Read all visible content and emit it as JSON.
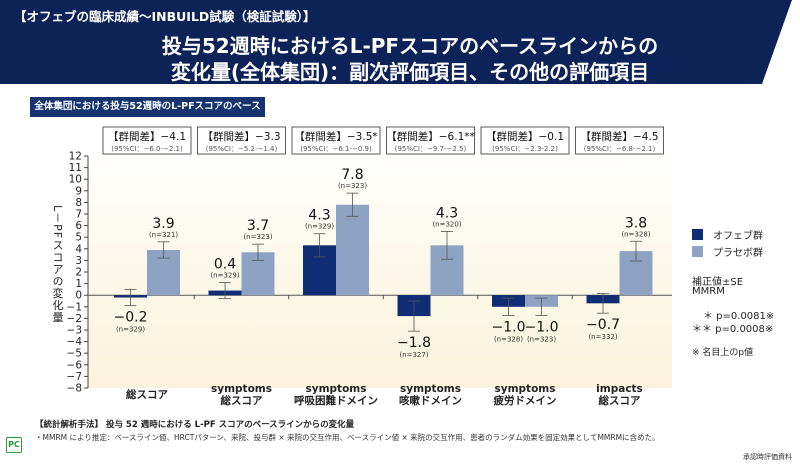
{
  "header": {
    "label": "【オフェブの臨床成績～INBUILD試験（検証試験）】",
    "title_line1": "投与52週時におけるL-PFスコアのベースラインからの",
    "title_line2": "変化量(全体集団)：副次評価項目、その他の評価項目",
    "bg_color": "#0d2257"
  },
  "subtitle": "全体集団における投与52週時のL-PFスコアのベースラインからの変化量",
  "chart_data": {
    "type": "bar",
    "title": "",
    "ylabel": "L－PFスコアの変化量",
    "xlabel": "",
    "ylim": [
      -8,
      12
    ],
    "yticks": [
      12,
      11,
      10,
      9,
      8,
      7,
      6,
      5,
      4,
      3,
      2,
      1,
      0,
      -1,
      -2,
      -3,
      -4,
      -5,
      -6,
      -7,
      -8
    ],
    "grid": false,
    "legend_position": "right",
    "categories": [
      [
        "総スコア"
      ],
      [
        "symptoms",
        "総スコア"
      ],
      [
        "symptoms",
        "呼吸困難ドメイン"
      ],
      [
        "symptoms",
        "咳嗽ドメイン"
      ],
      [
        "symptoms",
        "疲労ドメイン"
      ],
      [
        "impacts",
        "総スコア"
      ]
    ],
    "series": [
      {
        "name": "オフェブ群",
        "color": "#0e2d74",
        "values": [
          -0.2,
          0.4,
          4.3,
          -1.8,
          -1.0,
          -0.7
        ],
        "labels": [
          "−0.2",
          "0.4",
          "4.3",
          "−1.8",
          "−1.0",
          "−0.7"
        ],
        "se": [
          0.7,
          0.7,
          1.0,
          1.3,
          0.75,
          0.85
        ],
        "n": [
          "(n=329)",
          "(n=329)",
          "(n=329)",
          "(n=327)",
          "(n=328)",
          "(n=332)"
        ]
      },
      {
        "name": "プラセボ群",
        "color": "#8ea3c4",
        "values": [
          3.9,
          3.7,
          7.8,
          4.3,
          -1.0,
          3.8
        ],
        "labels": [
          "3.9",
          "3.7",
          "7.8",
          "4.3",
          "−1.0",
          "3.8"
        ],
        "se": [
          0.7,
          0.7,
          1.0,
          1.2,
          0.75,
          0.85
        ],
        "n": [
          "(n=321)",
          "(n=323)",
          "(n=323)",
          "(n=320)",
          "(n=323)",
          "(n=328)"
        ]
      }
    ],
    "differences": [
      {
        "label": "【群間差】−4.1",
        "ci": "(95%CI：−6.0-−2.1)"
      },
      {
        "label": "【群間差】−3.3",
        "ci": "(95%CI：−5.2-−1.4)"
      },
      {
        "label": "【群間差】−3.5*",
        "ci": "(95%CI：−6.1-−0.9)"
      },
      {
        "label": "【群間差】−6.1**",
        "ci": "(95%CI：−9.7-−2.5)"
      },
      {
        "label": "【群間差】−0.1",
        "ci": "(95%CI：−2.3-2.2)"
      },
      {
        "label": "【群間差】−4.5",
        "ci": "(95%CI：−6.8-−2.1)"
      }
    ]
  },
  "legend": {
    "items": [
      "オフェブ群",
      "プラセボ群"
    ],
    "note1": "補正値±SE",
    "note2": "MMRM",
    "p1": "＊ p=0.0081※",
    "p2": "＊＊ p=0.0008※",
    "p_note": "※ 名目上のp値"
  },
  "footer": {
    "method": "【統計解析手法】 投与 52 週時における L-PF スコアのベースラインからの変化量",
    "detail": "・MMRM により推定：ベースライン値、HRCTパターン、来院、投与群 × 来院の交互作用、ベースライン値 × 来院の交互作用、患者のランダム効果を固定効果としてMMRMに含めた。",
    "logo": "PC",
    "source": "承認時評価資料"
  }
}
